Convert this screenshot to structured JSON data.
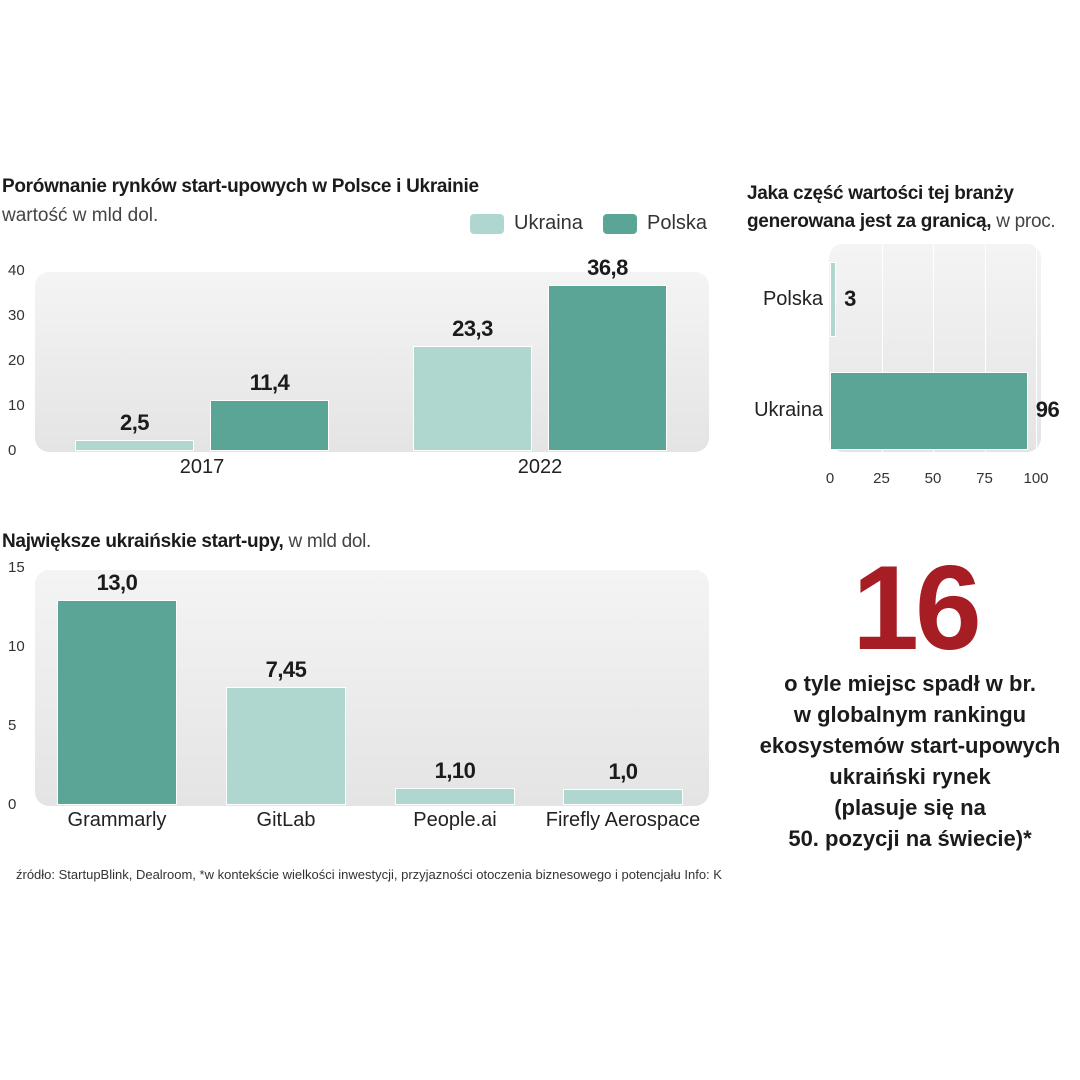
{
  "colors": {
    "ukraina": "#b0d7cf",
    "polska": "#5ba596",
    "accent": "#a61e24"
  },
  "chart_data": [
    {
      "type": "bar",
      "title_bold": "Porównanie rynków start-upowych w Polsce i Ukrainie",
      "subtitle": "wartość w mld dol.",
      "categories": [
        "2017",
        "2022"
      ],
      "series": [
        {
          "name": "Ukraina",
          "values": [
            2.5,
            23.3
          ],
          "labels": [
            "2,5",
            "23,3"
          ]
        },
        {
          "name": "Polska",
          "values": [
            11.4,
            36.8
          ],
          "labels": [
            "11,4",
            "36,8"
          ]
        }
      ],
      "ylim": [
        0,
        40
      ],
      "yticks": [
        "0",
        "10",
        "20",
        "30",
        "40"
      ],
      "legend": "top-right"
    },
    {
      "type": "bar",
      "orientation": "horizontal",
      "title_bold": "Jaka część wartości tej branży generowana jest za granicą,",
      "title_light": "w proc.",
      "categories": [
        "Polska",
        "Ukraina"
      ],
      "values": [
        3,
        96
      ],
      "labels": [
        "3",
        "96"
      ],
      "xlim": [
        0,
        100
      ],
      "xticks": [
        "0",
        "25",
        "50",
        "75",
        "100"
      ]
    },
    {
      "type": "bar",
      "title_bold": "Największe ukraińskie start-upy,",
      "title_light": "w mld dol.",
      "categories": [
        "Grammarly",
        "GitLab",
        "People.ai",
        "Firefly Aerospace"
      ],
      "values": [
        13.0,
        7.45,
        1.1,
        1.0
      ],
      "labels": [
        "13,0",
        "7,45",
        "1,10",
        "1,0"
      ],
      "ylim": [
        0,
        15
      ],
      "yticks": [
        "0",
        "5",
        "10",
        "15"
      ]
    }
  ],
  "callout": {
    "number": "16",
    "text": "o tyle miejsc spadł w br.\nw globalnym rankingu\nekosystemów start-upowych\nukraiński rynek\n(plasuje się na\n50. pozycji na świecie)*"
  },
  "source": "źródło: StartupBlink, Dealroom, *w kontekście wielkości inwestycji, przyjazności otoczenia biznesowego i potencjału  Info: K"
}
